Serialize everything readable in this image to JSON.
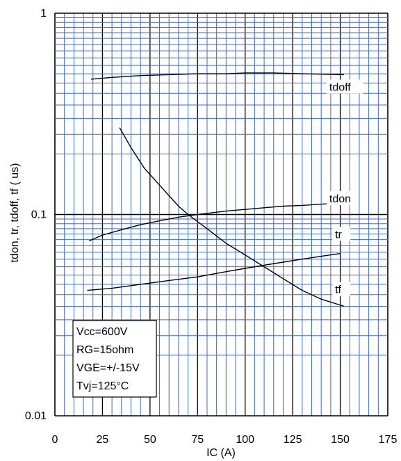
{
  "chart_data": {
    "type": "line",
    "title": "",
    "xlabel": "IC (A)",
    "ylabel": "tdon, tr, tdoff, tf  ( us)",
    "x_scale": "linear",
    "y_scale": "log",
    "xlim": [
      0,
      175
    ],
    "ylim": [
      0.01,
      1
    ],
    "x_ticks": [
      0,
      25,
      50,
      75,
      100,
      125,
      150,
      175
    ],
    "x_tick_labels": [
      "0",
      "25",
      "50",
      "75",
      "100",
      "125",
      "150",
      "175"
    ],
    "y_ticks": [
      0.01,
      0.1,
      1
    ],
    "y_tick_labels": [
      "0.01",
      "0.1",
      "1"
    ],
    "grid": true,
    "grid_color": "#3a6bc8",
    "major_grid_color": "#000000",
    "line_color": "#000000",
    "series": [
      {
        "name": "tdoff",
        "label_at": [
          145,
          0.415
        ],
        "x": [
          19,
          30,
          45,
          60,
          75,
          90,
          100,
          115,
          130,
          152
        ],
        "y": [
          0.47,
          0.48,
          0.49,
          0.495,
          0.5,
          0.5,
          0.505,
          0.505,
          0.5,
          0.495
        ]
      },
      {
        "name": "tdon",
        "label_at": [
          145,
          0.116
        ],
        "x": [
          18,
          25,
          35,
          45,
          55,
          65,
          75,
          90,
          100,
          110,
          120,
          130,
          143
        ],
        "y": [
          0.074,
          0.079,
          0.084,
          0.089,
          0.093,
          0.097,
          0.1,
          0.104,
          0.106,
          0.108,
          0.11,
          0.111,
          0.113
        ]
      },
      {
        "name": "tr",
        "label_at": [
          148,
          0.077
        ],
        "x": [
          17,
          30,
          45,
          60,
          75,
          90,
          100,
          110,
          120,
          130,
          140,
          150
        ],
        "y": [
          0.042,
          0.043,
          0.045,
          0.047,
          0.049,
          0.052,
          0.054,
          0.056,
          0.058,
          0.06,
          0.062,
          0.064
        ]
      },
      {
        "name": "tf",
        "label_at": [
          148,
          0.041
        ],
        "x": [
          34,
          40,
          47,
          55,
          65,
          70,
          80,
          90,
          100,
          110,
          120,
          130,
          140,
          152
        ],
        "y": [
          0.27,
          0.215,
          0.17,
          0.14,
          0.11,
          0.1,
          0.085,
          0.072,
          0.063,
          0.055,
          0.048,
          0.042,
          0.038,
          0.035
        ]
      }
    ],
    "conditions": [
      "Vcc=600V",
      "RG=15ohm",
      "VGE=+/-15V",
      "Tvj=125°C"
    ]
  }
}
